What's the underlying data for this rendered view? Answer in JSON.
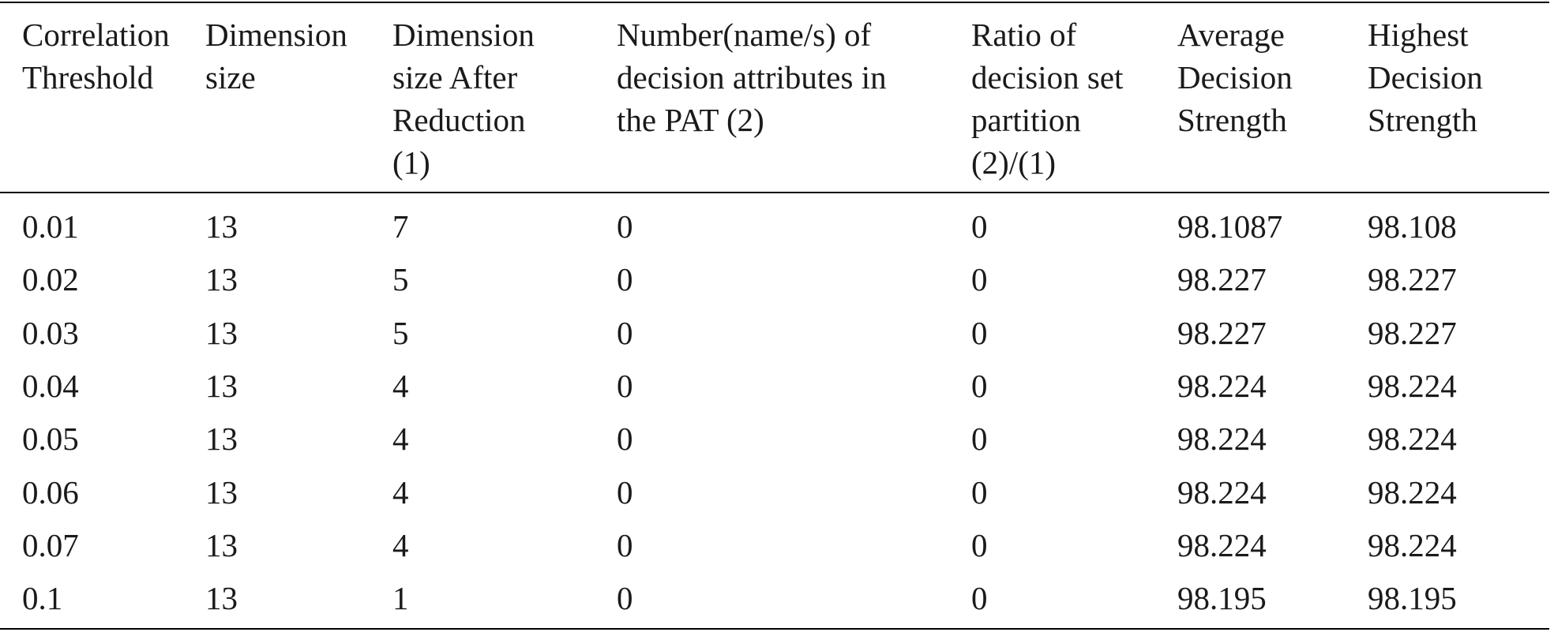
{
  "table": {
    "header": [
      [
        "Correlation",
        "Threshold"
      ],
      [
        "Dimension",
        "size"
      ],
      [
        "Dimension",
        "size After",
        "Reduction",
        "(1)"
      ],
      [
        "Number(name/s) of",
        "decision attributes in",
        "the PAT (2)"
      ],
      [
        "Ratio of",
        "decision set",
        "partition",
        "(2)/(1)"
      ],
      [
        "Average",
        "Decision",
        "Strength"
      ],
      [
        "Highest",
        "Decision",
        "Strength"
      ]
    ],
    "rows": [
      [
        0.01,
        13,
        7,
        0,
        0,
        98.1087,
        98.108
      ],
      [
        0.02,
        13,
        5,
        0,
        0,
        98.227,
        98.227
      ],
      [
        0.03,
        13,
        5,
        0,
        0,
        98.227,
        98.227
      ],
      [
        0.04,
        13,
        4,
        0,
        0,
        98.224,
        98.224
      ],
      [
        0.05,
        13,
        4,
        0,
        0,
        98.224,
        98.224
      ],
      [
        0.06,
        13,
        4,
        0,
        0,
        98.224,
        98.224
      ],
      [
        0.07,
        13,
        4,
        0,
        0,
        98.224,
        98.224
      ],
      [
        0.1,
        13,
        1,
        0,
        0,
        98.195,
        98.195
      ]
    ]
  }
}
